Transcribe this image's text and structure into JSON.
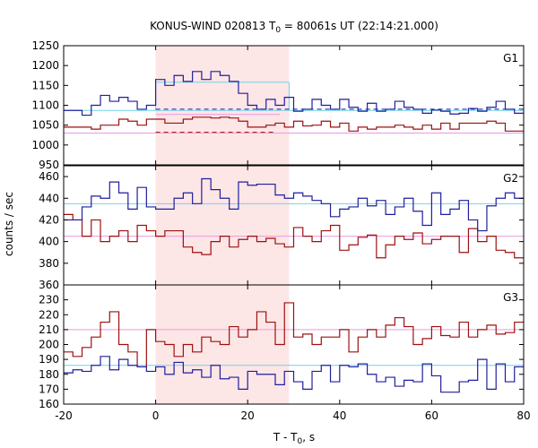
{
  "chart_data": {
    "type": "line",
    "title": "KONUS-WIND 020813 T",
    "title_sub": "0",
    "title_rest": " = 80061s UT (22:14:21.000)",
    "xlabel": "T - T",
    "xlabel_sub": "0",
    "xlabel_rest": ", s",
    "ylabel": "counts / sec",
    "xlim": [
      -20,
      80
    ],
    "x_ticks": [
      -20,
      0,
      20,
      40,
      60,
      80
    ],
    "highlight_interval": [
      0,
      29
    ],
    "highlight_color": "#fde6e6",
    "series_colors": {
      "blue": "#1f1f9e",
      "red": "#9e1010",
      "cyan": "#6fd3ea",
      "pink": "#e89ae0"
    },
    "bin_start": -20,
    "bin_width": 2,
    "panels": [
      {
        "label": "G1",
        "ylim": [
          950,
          1250
        ],
        "y_ticks": [
          950,
          1000,
          1050,
          1100,
          1150,
          1200,
          1250
        ],
        "blue": [
          1087,
          1087,
          1075,
          1100,
          1125,
          1110,
          1120,
          1110,
          1090,
          1100,
          1165,
          1150,
          1175,
          1160,
          1185,
          1165,
          1185,
          1175,
          1160,
          1130,
          1100,
          1090,
          1115,
          1100,
          1120,
          1085,
          1090,
          1115,
          1100,
          1090,
          1115,
          1095,
          1085,
          1105,
          1085,
          1090,
          1110,
          1095,
          1090,
          1080,
          1088,
          1085,
          1078,
          1080,
          1092,
          1085,
          1095,
          1110,
          1090,
          1080
        ],
        "red": [
          1045,
          1045,
          1045,
          1040,
          1050,
          1050,
          1065,
          1060,
          1050,
          1065,
          1065,
          1055,
          1055,
          1065,
          1070,
          1070,
          1068,
          1070,
          1068,
          1060,
          1045,
          1045,
          1050,
          1055,
          1045,
          1060,
          1048,
          1050,
          1060,
          1045,
          1055,
          1035,
          1045,
          1040,
          1045,
          1045,
          1050,
          1045,
          1040,
          1050,
          1040,
          1055,
          1040,
          1055,
          1055,
          1055,
          1060,
          1055,
          1035,
          1035
        ],
        "cyan_mean": 1087,
        "cyan_high": {
          "x": [
            0,
            29
          ],
          "y": 1158
        },
        "pink_mean": 1030,
        "pink_high": {
          "x": [
            0,
            27
          ],
          "y": 1077
        },
        "blue_dash": {
          "x": [
            0,
            80
          ],
          "y": 1090
        },
        "red_dash": {
          "x": [
            0,
            26
          ],
          "y": 1032
        }
      },
      {
        "label": "G2",
        "ylim": [
          360,
          470
        ],
        "y_ticks": [
          360,
          380,
          400,
          420,
          440,
          460
        ],
        "blue": [
          420,
          420,
          432,
          442,
          440,
          455,
          445,
          430,
          450,
          432,
          430,
          430,
          440,
          445,
          435,
          458,
          448,
          440,
          430,
          455,
          452,
          453,
          453,
          443,
          440,
          445,
          442,
          438,
          435,
          423,
          430,
          432,
          440,
          433,
          438,
          425,
          432,
          440,
          428,
          415,
          445,
          425,
          430,
          438,
          420,
          410,
          433,
          440,
          445,
          440
        ],
        "red": [
          425,
          420,
          405,
          420,
          400,
          405,
          410,
          400,
          415,
          410,
          405,
          410,
          410,
          395,
          390,
          388,
          400,
          405,
          395,
          402,
          405,
          400,
          403,
          398,
          395,
          413,
          405,
          400,
          410,
          415,
          392,
          397,
          404,
          406,
          385,
          397,
          405,
          402,
          408,
          398,
          402,
          405,
          405,
          390,
          412,
          400,
          405,
          392,
          390,
          385
        ],
        "cyan_mean": 435,
        "pink_mean": 405
      },
      {
        "label": "G3",
        "ylim": [
          160,
          240
        ],
        "y_ticks": [
          160,
          170,
          180,
          190,
          200,
          210,
          220,
          230
        ],
        "blue": [
          181,
          183,
          182,
          186,
          192,
          183,
          190,
          186,
          185,
          182,
          185,
          180,
          188,
          181,
          183,
          178,
          186,
          177,
          178,
          170,
          182,
          180,
          180,
          173,
          182,
          175,
          170,
          182,
          186,
          175,
          186,
          185,
          187,
          180,
          175,
          178,
          172,
          176,
          175,
          187,
          179,
          168,
          168,
          175,
          176,
          190,
          170,
          187,
          175,
          185
        ],
        "red": [
          195,
          192,
          198,
          205,
          215,
          222,
          200,
          195,
          185,
          210,
          202,
          200,
          192,
          200,
          195,
          205,
          202,
          200,
          212,
          205,
          210,
          222,
          215,
          200,
          228,
          205,
          207,
          200,
          205,
          205,
          210,
          195,
          205,
          210,
          205,
          213,
          218,
          212,
          200,
          204,
          212,
          206,
          205,
          215,
          205,
          210,
          213,
          207,
          208,
          215
        ],
        "cyan_mean": 186,
        "pink_mean": 210
      }
    ]
  }
}
